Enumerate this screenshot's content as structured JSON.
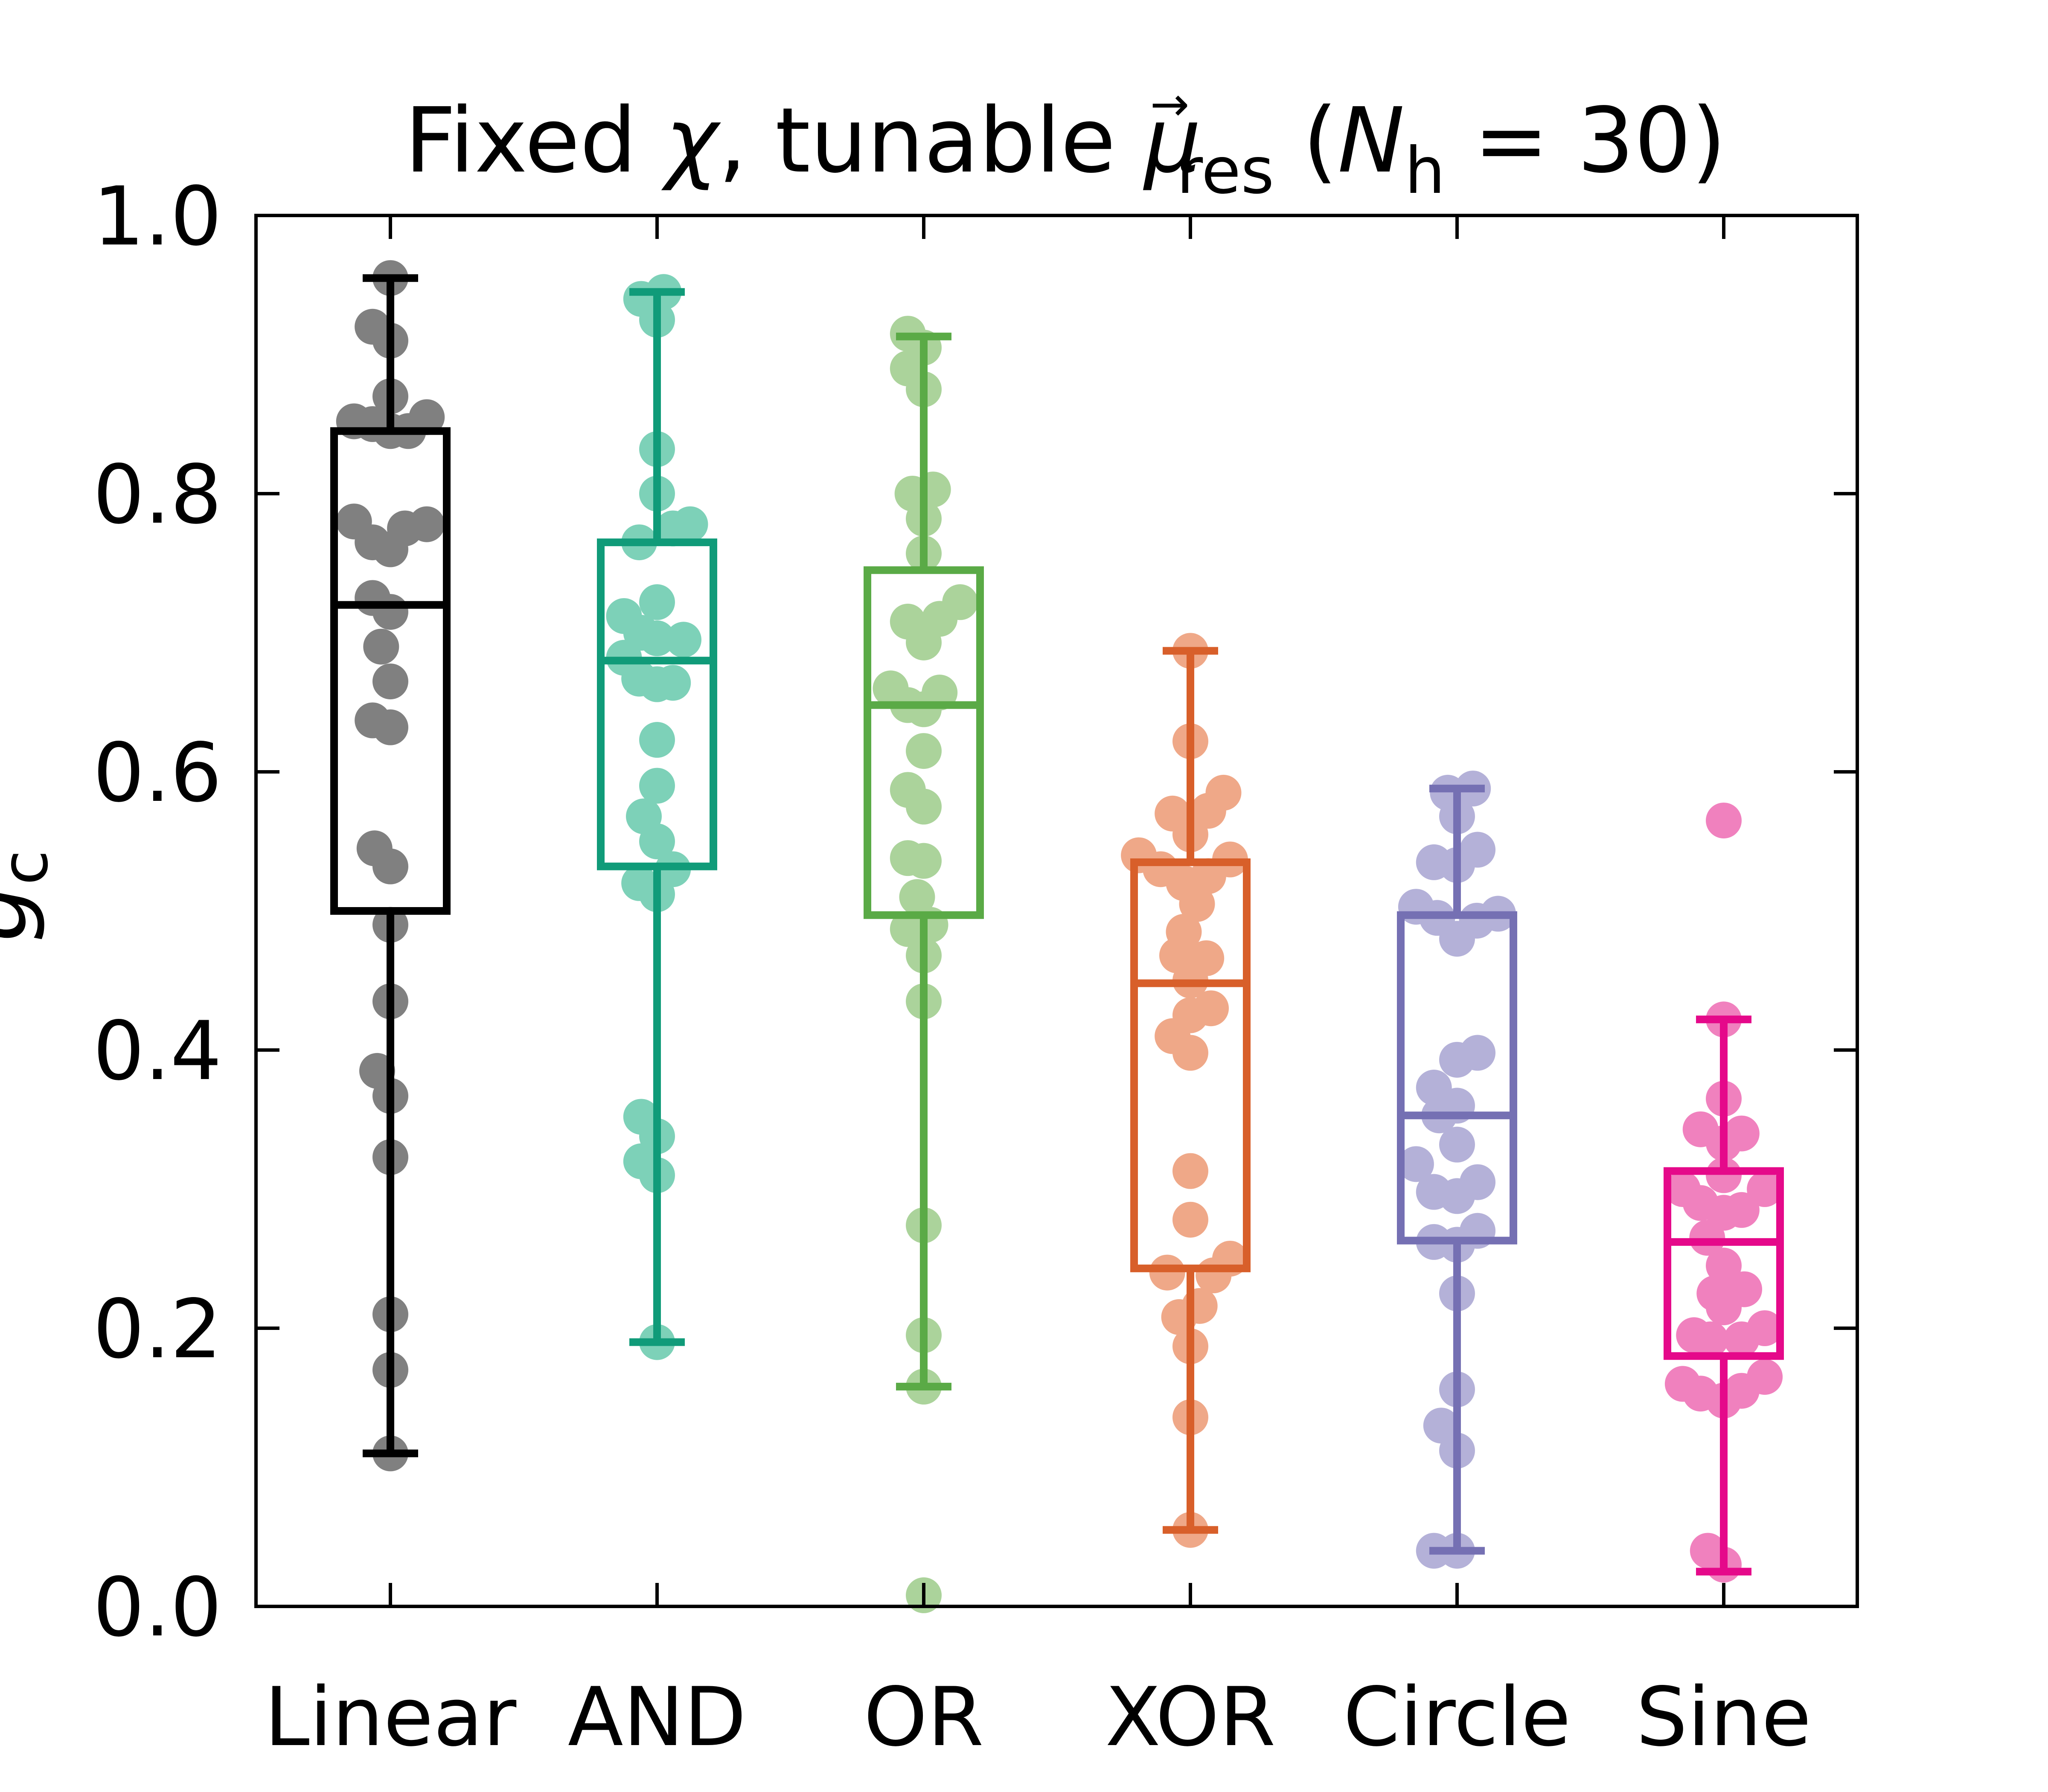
{
  "chart_data": {
    "type": "box",
    "title": "Fixed χ, tunable μ⃗res (Nh = 30)",
    "title_parts": {
      "prefix": "Fixed ",
      "chi": "χ",
      "sep": ", tunable ",
      "mu": "μ",
      "arrow": "→",
      "mu_sub": "res",
      "open": " (",
      "n": "N",
      "n_sub": "h",
      "eq": " = 30)"
    },
    "ylabel": "g",
    "ylabel_sub": "c",
    "ylim": [
      0.0,
      1.0
    ],
    "yticks": [
      0.0,
      0.2,
      0.4,
      0.6,
      0.8,
      1.0
    ],
    "ytick_labels": [
      "0.0",
      "0.2",
      "0.4",
      "0.6",
      "0.8",
      "1.0"
    ],
    "categories": [
      "Linear",
      "AND",
      "OR",
      "XOR",
      "Circle",
      "Sine"
    ],
    "grid": false,
    "series": [
      {
        "category": "Linear",
        "color": "#000000",
        "point_color": "#808080",
        "box": {
          "whisker_low": 0.11,
          "q1": 0.5,
          "median": 0.72,
          "q3": 0.845,
          "whisker_high": 0.955
        },
        "points": [
          {
            "y": 0.955,
            "dx": 0.0
          },
          {
            "y": 0.92,
            "dx": -0.27
          },
          {
            "y": 0.91,
            "dx": 0.0
          },
          {
            "y": 0.87,
            "dx": 0.0
          },
          {
            "y": 0.855,
            "dx": 0.55
          },
          {
            "y": 0.852,
            "dx": -0.55
          },
          {
            "y": 0.85,
            "dx": -0.27
          },
          {
            "y": 0.845,
            "dx": 0.0
          },
          {
            "y": 0.845,
            "dx": 0.27
          },
          {
            "y": 0.78,
            "dx": -0.55
          },
          {
            "y": 0.778,
            "dx": 0.55
          },
          {
            "y": 0.775,
            "dx": 0.22
          },
          {
            "y": 0.765,
            "dx": -0.27
          },
          {
            "y": 0.76,
            "dx": 0.0
          },
          {
            "y": 0.725,
            "dx": -0.27
          },
          {
            "y": 0.715,
            "dx": 0.0
          },
          {
            "y": 0.69,
            "dx": -0.14
          },
          {
            "y": 0.665,
            "dx": 0.0
          },
          {
            "y": 0.637,
            "dx": -0.27
          },
          {
            "y": 0.632,
            "dx": 0.0
          },
          {
            "y": 0.545,
            "dx": -0.24
          },
          {
            "y": 0.532,
            "dx": 0.0
          },
          {
            "y": 0.49,
            "dx": 0.0
          },
          {
            "y": 0.435,
            "dx": 0.0
          },
          {
            "y": 0.385,
            "dx": -0.2
          },
          {
            "y": 0.367,
            "dx": 0.0
          },
          {
            "y": 0.323,
            "dx": 0.0
          },
          {
            "y": 0.21,
            "dx": 0.0
          },
          {
            "y": 0.17,
            "dx": 0.0
          },
          {
            "y": 0.11,
            "dx": 0.0
          }
        ]
      },
      {
        "category": "AND",
        "color": "#109B79",
        "point_color": "#7DD1B8",
        "box": {
          "whisker_low": 0.19,
          "q1": 0.532,
          "median": 0.68,
          "q3": 0.765,
          "whisker_high": 0.945
        },
        "points": [
          {
            "y": 0.945,
            "dx": 0.1
          },
          {
            "y": 0.94,
            "dx": -0.24
          },
          {
            "y": 0.925,
            "dx": 0.0
          },
          {
            "y": 0.832,
            "dx": 0.0
          },
          {
            "y": 0.8,
            "dx": 0.0
          },
          {
            "y": 0.778,
            "dx": 0.5
          },
          {
            "y": 0.775,
            "dx": 0.24
          },
          {
            "y": 0.765,
            "dx": -0.27
          },
          {
            "y": 0.722,
            "dx": 0.0
          },
          {
            "y": 0.712,
            "dx": -0.5
          },
          {
            "y": 0.7,
            "dx": -0.24
          },
          {
            "y": 0.696,
            "dx": 0.0
          },
          {
            "y": 0.695,
            "dx": 0.4
          },
          {
            "y": 0.682,
            "dx": -0.5
          },
          {
            "y": 0.667,
            "dx": -0.27
          },
          {
            "y": 0.664,
            "dx": 0.24
          },
          {
            "y": 0.663,
            "dx": 0.0
          },
          {
            "y": 0.623,
            "dx": 0.0
          },
          {
            "y": 0.59,
            "dx": 0.0
          },
          {
            "y": 0.568,
            "dx": -0.2
          },
          {
            "y": 0.55,
            "dx": 0.0
          },
          {
            "y": 0.53,
            "dx": 0.24
          },
          {
            "y": 0.52,
            "dx": -0.27
          },
          {
            "y": 0.512,
            "dx": 0.0
          },
          {
            "y": 0.352,
            "dx": -0.24
          },
          {
            "y": 0.338,
            "dx": 0.0
          },
          {
            "y": 0.32,
            "dx": -0.24
          },
          {
            "y": 0.31,
            "dx": 0.0
          },
          {
            "y": 0.19,
            "dx": 0.0
          }
        ]
      },
      {
        "category": "OR",
        "color": "#5AAA46",
        "point_color": "#ABD39B",
        "box": {
          "whisker_low": 0.158,
          "q1": 0.497,
          "median": 0.648,
          "q3": 0.745,
          "whisker_high": 0.913
        },
        "points": [
          {
            "y": 0.915,
            "dx": -0.24
          },
          {
            "y": 0.905,
            "dx": 0.0
          },
          {
            "y": 0.89,
            "dx": -0.24
          },
          {
            "y": 0.875,
            "dx": 0.0
          },
          {
            "y": 0.803,
            "dx": 0.14
          },
          {
            "y": 0.8,
            "dx": -0.17
          },
          {
            "y": 0.782,
            "dx": 0.0
          },
          {
            "y": 0.757,
            "dx": 0.0
          },
          {
            "y": 0.722,
            "dx": 0.55
          },
          {
            "y": 0.71,
            "dx": 0.24
          },
          {
            "y": 0.708,
            "dx": -0.24
          },
          {
            "y": 0.693,
            "dx": 0.0
          },
          {
            "y": 0.66,
            "dx": -0.5
          },
          {
            "y": 0.657,
            "dx": 0.24
          },
          {
            "y": 0.648,
            "dx": -0.24
          },
          {
            "y": 0.645,
            "dx": 0.0
          },
          {
            "y": 0.615,
            "dx": 0.0
          },
          {
            "y": 0.587,
            "dx": -0.24
          },
          {
            "y": 0.575,
            "dx": 0.0
          },
          {
            "y": 0.538,
            "dx": -0.24
          },
          {
            "y": 0.536,
            "dx": 0.0
          },
          {
            "y": 0.51,
            "dx": -0.1
          },
          {
            "y": 0.49,
            "dx": 0.1
          },
          {
            "y": 0.487,
            "dx": -0.24
          },
          {
            "y": 0.468,
            "dx": 0.0
          },
          {
            "y": 0.435,
            "dx": 0.0
          },
          {
            "y": 0.274,
            "dx": 0.0
          },
          {
            "y": 0.195,
            "dx": 0.0
          },
          {
            "y": 0.158,
            "dx": 0.0
          },
          {
            "y": 0.008,
            "dx": 0.0
          }
        ]
      },
      {
        "category": "XOR",
        "color": "#D85F2A",
        "point_color": "#EFA888",
        "box": {
          "whisker_low": 0.055,
          "q1": 0.243,
          "median": 0.448,
          "q3": 0.535,
          "whisker_high": 0.687
        },
        "points": [
          {
            "y": 0.687,
            "dx": 0.0
          },
          {
            "y": 0.622,
            "dx": 0.0
          },
          {
            "y": 0.585,
            "dx": 0.5
          },
          {
            "y": 0.572,
            "dx": 0.27
          },
          {
            "y": 0.57,
            "dx": -0.27
          },
          {
            "y": 0.555,
            "dx": 0.0
          },
          {
            "y": 0.54,
            "dx": -0.78
          },
          {
            "y": 0.537,
            "dx": 0.6
          },
          {
            "y": 0.53,
            "dx": -0.45
          },
          {
            "y": 0.525,
            "dx": 0.27
          },
          {
            "y": 0.52,
            "dx": -0.1
          },
          {
            "y": 0.505,
            "dx": 0.1
          },
          {
            "y": 0.485,
            "dx": -0.1
          },
          {
            "y": 0.468,
            "dx": -0.2
          },
          {
            "y": 0.466,
            "dx": 0.24
          },
          {
            "y": 0.45,
            "dx": 0.0
          },
          {
            "y": 0.43,
            "dx": 0.31
          },
          {
            "y": 0.425,
            "dx": 0.0
          },
          {
            "y": 0.41,
            "dx": -0.27
          },
          {
            "y": 0.398,
            "dx": 0.0
          },
          {
            "y": 0.313,
            "dx": 0.0
          },
          {
            "y": 0.278,
            "dx": 0.0
          },
          {
            "y": 0.25,
            "dx": 0.6
          },
          {
            "y": 0.24,
            "dx": -0.35
          },
          {
            "y": 0.238,
            "dx": 0.35
          },
          {
            "y": 0.216,
            "dx": 0.14
          },
          {
            "y": 0.208,
            "dx": -0.17
          },
          {
            "y": 0.187,
            "dx": 0.0
          },
          {
            "y": 0.136,
            "dx": 0.0
          },
          {
            "y": 0.055,
            "dx": 0.0
          }
        ]
      },
      {
        "category": "Circle",
        "color": "#7570B3",
        "point_color": "#B4B1D8",
        "box": {
          "whisker_low": 0.04,
          "q1": 0.263,
          "median": 0.353,
          "q3": 0.497,
          "whisker_high": 0.588
        },
        "points": [
          {
            "y": 0.588,
            "dx": 0.24
          },
          {
            "y": 0.585,
            "dx": -0.14
          },
          {
            "y": 0.568,
            "dx": 0.0
          },
          {
            "y": 0.544,
            "dx": 0.31
          },
          {
            "y": 0.535,
            "dx": -0.35
          },
          {
            "y": 0.533,
            "dx": 0.0
          },
          {
            "y": 0.503,
            "dx": -0.62
          },
          {
            "y": 0.498,
            "dx": 0.62
          },
          {
            "y": 0.495,
            "dx": -0.3
          },
          {
            "y": 0.493,
            "dx": 0.3
          },
          {
            "y": 0.48,
            "dx": 0.0
          },
          {
            "y": 0.398,
            "dx": 0.31
          },
          {
            "y": 0.393,
            "dx": 0.0
          },
          {
            "y": 0.373,
            "dx": -0.35
          },
          {
            "y": 0.36,
            "dx": 0.0
          },
          {
            "y": 0.353,
            "dx": -0.27
          },
          {
            "y": 0.332,
            "dx": 0.0
          },
          {
            "y": 0.318,
            "dx": -0.62
          },
          {
            "y": 0.305,
            "dx": 0.31
          },
          {
            "y": 0.298,
            "dx": -0.35
          },
          {
            "y": 0.295,
            "dx": 0.0
          },
          {
            "y": 0.27,
            "dx": 0.31
          },
          {
            "y": 0.262,
            "dx": -0.35
          },
          {
            "y": 0.26,
            "dx": 0.0
          },
          {
            "y": 0.225,
            "dx": 0.0
          },
          {
            "y": 0.156,
            "dx": 0.0
          },
          {
            "y": 0.13,
            "dx": -0.24
          },
          {
            "y": 0.112,
            "dx": 0.0
          },
          {
            "y": 0.04,
            "dx": -0.35
          },
          {
            "y": 0.04,
            "dx": 0.0
          }
        ]
      },
      {
        "category": "Sine",
        "color": "#E5098A",
        "point_color": "#F081BE",
        "box": {
          "whisker_low": 0.025,
          "q1": 0.18,
          "median": 0.262,
          "q3": 0.313,
          "whisker_high": 0.422
        },
        "points": [
          {
            "y": 0.565,
            "dx": 0.0
          },
          {
            "y": 0.422,
            "dx": 0.0
          },
          {
            "y": 0.365,
            "dx": 0.0
          },
          {
            "y": 0.343,
            "dx": -0.35
          },
          {
            "y": 0.34,
            "dx": 0.27
          },
          {
            "y": 0.333,
            "dx": 0.0
          },
          {
            "y": 0.31,
            "dx": 0.0
          },
          {
            "y": 0.3,
            "dx": -0.62
          },
          {
            "y": 0.3,
            "dx": 0.62
          },
          {
            "y": 0.29,
            "dx": -0.35
          },
          {
            "y": 0.285,
            "dx": 0.27
          },
          {
            "y": 0.283,
            "dx": 0.0
          },
          {
            "y": 0.265,
            "dx": -0.25
          },
          {
            "y": 0.245,
            "dx": 0.0
          },
          {
            "y": 0.228,
            "dx": 0.31
          },
          {
            "y": 0.225,
            "dx": -0.14
          },
          {
            "y": 0.215,
            "dx": 0.0
          },
          {
            "y": 0.2,
            "dx": 0.62
          },
          {
            "y": 0.195,
            "dx": -0.45
          },
          {
            "y": 0.192,
            "dx": -0.2
          },
          {
            "y": 0.192,
            "dx": 0.27
          },
          {
            "y": 0.165,
            "dx": 0.62
          },
          {
            "y": 0.16,
            "dx": -0.62
          },
          {
            "y": 0.155,
            "dx": 0.27
          },
          {
            "y": 0.153,
            "dx": -0.35
          },
          {
            "y": 0.148,
            "dx": 0.0
          },
          {
            "y": 0.04,
            "dx": -0.24
          },
          {
            "y": 0.03,
            "dx": 0.0
          }
        ]
      }
    ]
  }
}
